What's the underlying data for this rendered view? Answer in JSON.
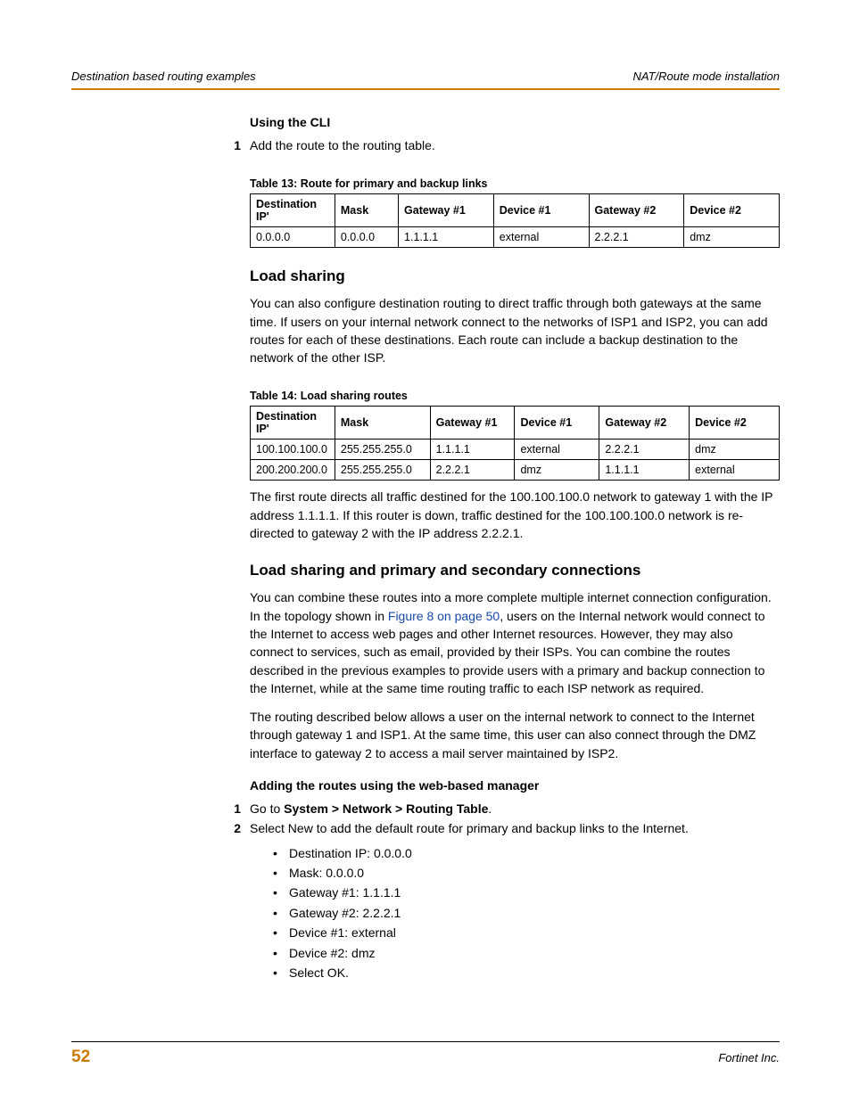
{
  "header": {
    "left": "Destination based routing examples",
    "right": "NAT/Route mode installation",
    "rule_color": "#cc7a00"
  },
  "cli": {
    "heading": "Using the CLI",
    "step1_num": "1",
    "step1_text": "Add the route to the routing table."
  },
  "table13": {
    "caption": "Table 13: Route for primary and backup links",
    "columns": [
      "Destination IP'",
      "Mask",
      "Gateway #1",
      "Device #1",
      "Gateway #2",
      "Device #2"
    ],
    "col_widths_pct": [
      16,
      12,
      18,
      18,
      18,
      18
    ],
    "rows": [
      [
        "0.0.0.0",
        "0.0.0.0",
        "1.1.1.1",
        "external",
        "2.2.2.1",
        "dmz"
      ]
    ]
  },
  "load_sharing": {
    "title": "Load sharing",
    "para": "You can also configure destination routing to direct traffic through both gateways at the same time. If users on your internal network connect to the networks of ISP1 and ISP2, you can add routes for each of these destinations. Each route can include a backup destination to the network of the other ISP."
  },
  "table14": {
    "caption": "Table 14: Load sharing routes",
    "columns": [
      "Destination IP'",
      "Mask",
      "Gateway #1",
      "Device #1",
      "Gateway #2",
      "Device #2"
    ],
    "col_widths_pct": [
      16,
      18,
      16,
      16,
      17,
      17
    ],
    "rows": [
      [
        "100.100.100.0",
        "255.255.255.0",
        "1.1.1.1",
        "external",
        "2.2.2.1",
        "dmz"
      ],
      [
        "200.200.200.0",
        "255.255.255.0",
        "2.2.2.1",
        "dmz",
        "1.1.1.1",
        "external"
      ]
    ]
  },
  "post_table14_para": "The first route directs all traffic destined for the 100.100.100.0 network to gateway 1 with the IP address 1.1.1.1. If this router is down, traffic destined for the 100.100.100.0 network is re-directed to gateway 2 with the IP address 2.2.2.1.",
  "combined": {
    "title": "Load sharing and primary and secondary connections",
    "para1_a": "You can combine these routes into a more complete multiple internet connection configuration. In the topology shown in ",
    "xref": "Figure 8 on page 50",
    "para1_b": ", users on the Internal network would connect to the Internet to access web pages and other Internet resources. However, they may also connect to services, such as email, provided by their ISPs. You can combine the routes described in the previous examples to provide users with a primary and backup connection to the Internet, while at the same time routing traffic to each ISP network as required.",
    "para2": "The routing described below allows a user on the internal network to connect to the Internet through gateway 1 and ISP1. At the same time, this user can also connect through the DMZ interface to gateway 2 to access a mail server maintained by ISP2."
  },
  "web_manager": {
    "heading": "Adding the routes using the web-based manager",
    "step1_num": "1",
    "step1_pre": "Go to ",
    "step1_bold": "System > Network > Routing Table",
    "step1_post": ".",
    "step2_num": "2",
    "step2_text": "Select New to add the default route for primary and backup links to the Internet.",
    "bullets": [
      "Destination IP: 0.0.0.0",
      "Mask: 0.0.0.0",
      "Gateway #1: 1.1.1.1",
      "Gateway #2: 2.2.2.1",
      "Device #1: external",
      "Device #2: dmz",
      "Select OK."
    ]
  },
  "footer": {
    "page_number": "52",
    "company": "Fortinet Inc.",
    "page_num_color": "#cc7a00"
  }
}
